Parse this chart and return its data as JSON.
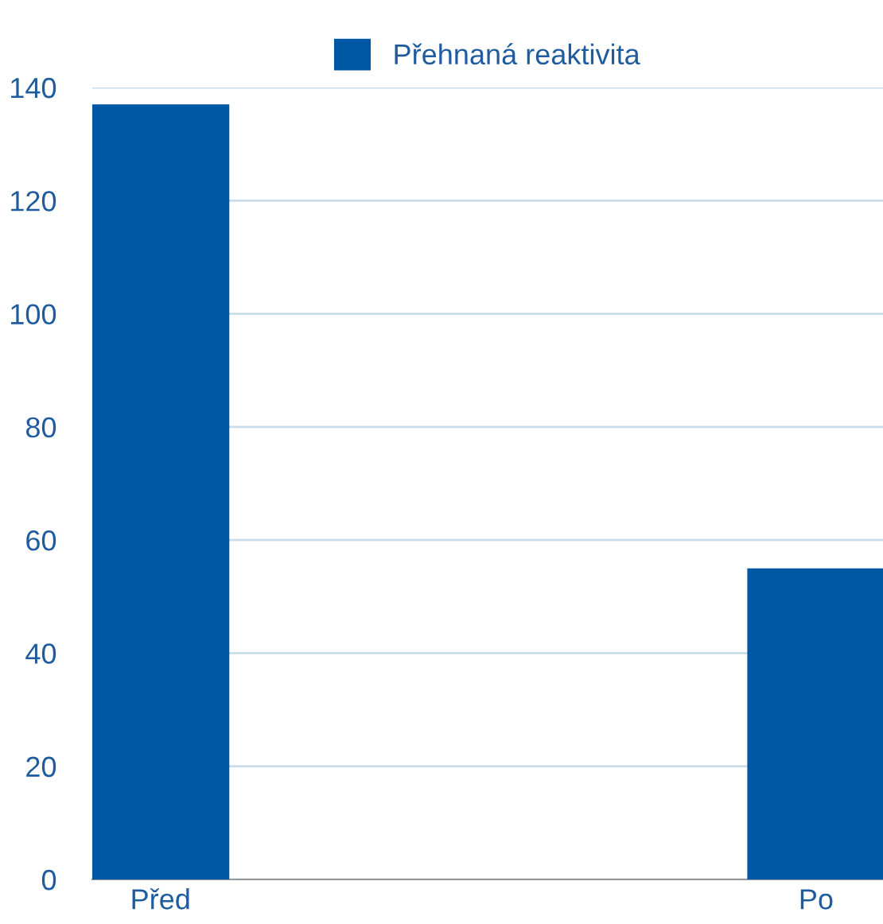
{
  "chart_data": {
    "type": "bar",
    "categories": [
      "Před",
      "Po"
    ],
    "series": [
      {
        "name": "Přehnaná reaktivita",
        "color": "#0057a3",
        "values": [
          137,
          55
        ]
      }
    ],
    "ylim": [
      0,
      140
    ],
    "yticks": [
      0,
      20,
      40,
      60,
      80,
      100,
      120,
      140
    ],
    "grid": "y",
    "legend": "top"
  }
}
